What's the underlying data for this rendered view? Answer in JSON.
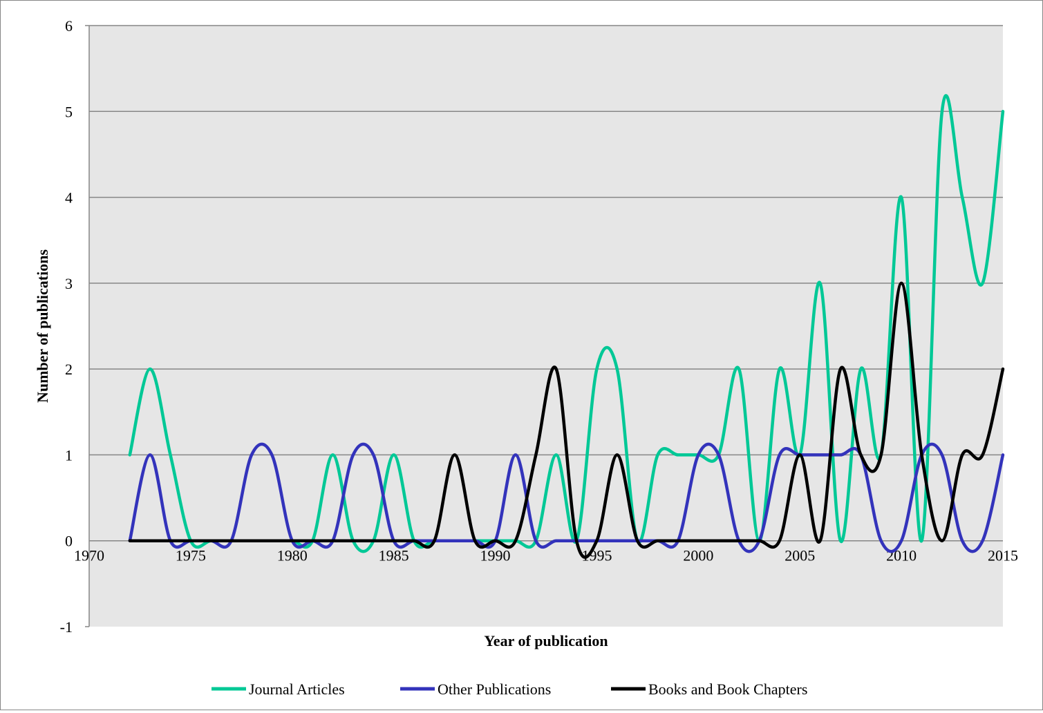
{
  "chart_data": {
    "type": "line",
    "title": "",
    "xlabel": "Year of publication",
    "ylabel": "Number of publications",
    "xlim": [
      1970,
      2015
    ],
    "ylim": [
      -1,
      6
    ],
    "xticks": [
      1970,
      1975,
      1980,
      1985,
      1990,
      1995,
      2000,
      2005,
      2010,
      2015
    ],
    "yticks": [
      -1,
      0,
      1,
      2,
      3,
      4,
      5,
      6
    ],
    "grid": "horizontal",
    "smoothed": true,
    "legend_position": "bottom",
    "plot_background": "#e6e6e6",
    "x": [
      1972,
      1973,
      1974,
      1975,
      1976,
      1977,
      1978,
      1979,
      1980,
      1981,
      1982,
      1983,
      1984,
      1985,
      1986,
      1987,
      1988,
      1989,
      1990,
      1991,
      1992,
      1993,
      1994,
      1995,
      1996,
      1997,
      1998,
      1999,
      2000,
      2001,
      2002,
      2003,
      2004,
      2005,
      2006,
      2007,
      2008,
      2009,
      2010,
      2011,
      2012,
      2013,
      2014,
      2015
    ],
    "series": [
      {
        "name": "Journal Articles",
        "color": "#00c896",
        "values": [
          1,
          2,
          1,
          0,
          0,
          0,
          0,
          0,
          0,
          0,
          1,
          0,
          0,
          1,
          0,
          0,
          0,
          0,
          0,
          0,
          0,
          1,
          0,
          2,
          2,
          0,
          1,
          1,
          1,
          1,
          2,
          0,
          2,
          1,
          3,
          0,
          2,
          1,
          4,
          0,
          5,
          4,
          3,
          5
        ]
      },
      {
        "name": "Other Publications",
        "color": "#3333bb",
        "values": [
          0,
          1,
          0,
          0,
          0,
          0,
          1,
          1,
          0,
          0,
          0,
          1,
          1,
          0,
          0,
          0,
          0,
          0,
          0,
          1,
          0,
          0,
          0,
          0,
          0,
          0,
          0,
          0,
          1,
          1,
          0,
          0,
          1,
          1,
          1,
          1,
          1,
          0,
          0,
          1,
          1,
          0,
          0,
          1
        ]
      },
      {
        "name": "Books and Book Chapters",
        "color": "#000000",
        "values": [
          0,
          0,
          0,
          0,
          0,
          0,
          0,
          0,
          0,
          0,
          0,
          0,
          0,
          0,
          0,
          0,
          1,
          0,
          0,
          0,
          1,
          2,
          0,
          0,
          1,
          0,
          0,
          0,
          0,
          0,
          0,
          0,
          0,
          1,
          0,
          2,
          1,
          1,
          3,
          1,
          0,
          1,
          1,
          2
        ]
      }
    ]
  }
}
